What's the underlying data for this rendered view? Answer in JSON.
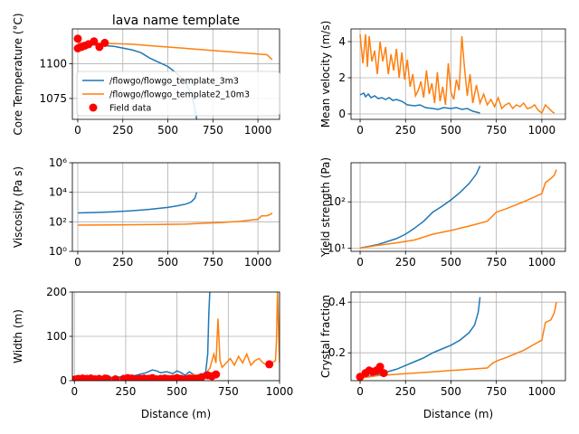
{
  "chart_data": [
    {
      "type": "line",
      "title": "lava name template",
      "xlabel": "",
      "ylabel": "Core Temperature (°C)",
      "xlim": [
        -30,
        1120
      ],
      "ylim": [
        1060,
        1125
      ],
      "xticks": [
        "0",
        "250",
        "500",
        "750",
        "1000"
      ],
      "yticks": [
        "1075",
        "1100"
      ],
      "xtick_values": [
        0,
        250,
        500,
        750,
        1000
      ],
      "ytick_values": [
        1075,
        1100
      ],
      "grid": true,
      "legend": {
        "placement": "lower-left",
        "entries": [
          "/flowgo/flowgo_template_3m3",
          "/flowgo/flowgo_template2_10m3",
          "Field data"
        ]
      },
      "series": [
        {
          "name": "/flowgo/flowgo_template_3m3",
          "color": "#1f77b4",
          "x": [
            0,
            100,
            200,
            300,
            350,
            400,
            450,
            500,
            550,
            600,
            630,
            650,
            660
          ],
          "y": [
            1114,
            1113.5,
            1112.5,
            1110,
            1108,
            1104,
            1101,
            1098,
            1093,
            1086,
            1078,
            1068,
            1060
          ]
        },
        {
          "name": "/flowgo/flowgo_template2_10m3",
          "color": "#ff7f0e",
          "x": [
            0,
            100,
            200,
            300,
            400,
            500,
            600,
            700,
            800,
            900,
            1000,
            1050,
            1070,
            1080
          ],
          "y": [
            1115,
            1114.8,
            1114.5,
            1114,
            1113,
            1112,
            1111,
            1110,
            1109,
            1108,
            1107,
            1106.5,
            1104,
            1103
          ]
        },
        {
          "name": "Field data",
          "color": "#ff0000",
          "markers": true,
          "x": [
            0,
            0,
            20,
            40,
            60,
            90,
            120,
            150
          ],
          "y": [
            1118,
            1111,
            1112,
            1113,
            1114,
            1116,
            1112,
            1115
          ]
        }
      ]
    },
    {
      "type": "line",
      "title": "",
      "xlabel": "",
      "ylabel": "Mean velocity (m/s)",
      "xlim": [
        -50,
        1130
      ],
      "ylim": [
        -0.3,
        4.7
      ],
      "xticks": [
        "0",
        "250",
        "500",
        "750",
        "1000"
      ],
      "yticks": [
        "0",
        "2",
        "4"
      ],
      "xtick_values": [
        0,
        250,
        500,
        750,
        1000
      ],
      "ytick_values": [
        0,
        2,
        4
      ],
      "grid": true,
      "series": [
        {
          "name": "/flowgo/flowgo_template_3m3",
          "color": "#1f77b4",
          "x": [
            0,
            20,
            30,
            45,
            60,
            80,
            100,
            120,
            140,
            160,
            180,
            200,
            230,
            260,
            300,
            330,
            360,
            400,
            430,
            460,
            500,
            530,
            560,
            590,
            620,
            640,
            660
          ],
          "y": [
            1.05,
            1.15,
            0.95,
            1.1,
            0.9,
            1.0,
            0.85,
            0.9,
            0.8,
            0.9,
            0.75,
            0.8,
            0.7,
            0.5,
            0.45,
            0.5,
            0.35,
            0.3,
            0.25,
            0.35,
            0.3,
            0.35,
            0.25,
            0.3,
            0.15,
            0.1,
            0.05
          ]
        },
        {
          "name": "/flowgo/flowgo_template2_10m3",
          "color": "#ff7f0e",
          "x": [
            0,
            15,
            30,
            40,
            50,
            65,
            80,
            95,
            110,
            125,
            140,
            155,
            170,
            185,
            200,
            215,
            230,
            245,
            260,
            275,
            290,
            305,
            320,
            335,
            350,
            365,
            380,
            395,
            410,
            425,
            440,
            455,
            470,
            485,
            500,
            515,
            530,
            545,
            560,
            575,
            590,
            605,
            620,
            640,
            660,
            680,
            700,
            720,
            740,
            760,
            780,
            800,
            820,
            840,
            860,
            880,
            900,
            920,
            940,
            960,
            980,
            1000,
            1020,
            1040,
            1060,
            1070
          ],
          "y": [
            4.4,
            2.8,
            4.4,
            2.6,
            4.3,
            2.9,
            3.5,
            2.2,
            4.0,
            2.9,
            3.7,
            2.2,
            3.3,
            2.4,
            3.6,
            2.0,
            3.4,
            1.9,
            3.0,
            1.5,
            2.2,
            1.0,
            1.3,
            1.8,
            0.9,
            2.4,
            1.1,
            1.7,
            0.6,
            2.3,
            0.7,
            1.5,
            0.5,
            2.8,
            1.2,
            0.8,
            1.9,
            1.3,
            4.3,
            2.5,
            1.0,
            2.2,
            0.6,
            1.6,
            0.6,
            1.1,
            0.5,
            0.8,
            0.4,
            0.9,
            0.3,
            0.5,
            0.6,
            0.3,
            0.5,
            0.4,
            0.6,
            0.3,
            0.35,
            0.5,
            0.2,
            0.05,
            0.5,
            0.3,
            0.1,
            0.05
          ]
        }
      ]
    },
    {
      "type": "line",
      "title": "",
      "xlabel": "",
      "ylabel": "Viscosity (Pa s)",
      "yscale": "log",
      "xlim": [
        -30,
        1120
      ],
      "ylim": [
        1,
        1000000
      ],
      "xticks": [
        "0",
        "250",
        "500",
        "750",
        "1000"
      ],
      "yticks": [
        "10⁰",
        "10²",
        "10⁴",
        "10⁶"
      ],
      "xtick_values": [
        0,
        250,
        500,
        750,
        1000
      ],
      "ytick_values": [
        1,
        100,
        10000,
        1000000
      ],
      "grid": true,
      "series": [
        {
          "name": "/flowgo/flowgo_template_3m3",
          "color": "#1f77b4",
          "x": [
            0,
            100,
            200,
            300,
            400,
            500,
            550,
            600,
            630,
            650,
            660
          ],
          "y": [
            400,
            430,
            480,
            560,
            700,
            950,
            1200,
            1600,
            2200,
            4000,
            10000
          ]
        },
        {
          "name": "/flowgo/flowgo_template2_10m3",
          "color": "#ff7f0e",
          "x": [
            0,
            200,
            400,
            600,
            700,
            800,
            900,
            1000,
            1020,
            1050,
            1070,
            1080
          ],
          "y": [
            60,
            62,
            65,
            70,
            80,
            90,
            110,
            150,
            250,
            260,
            320,
            400
          ]
        }
      ]
    },
    {
      "type": "line",
      "title": "",
      "xlabel": "",
      "ylabel": "Yield strength (Pa)",
      "yscale": "log",
      "xlim": [
        -50,
        1130
      ],
      "ylim": [
        8.5,
        700
      ],
      "xticks": [
        "0",
        "250",
        "500",
        "750",
        "1000"
      ],
      "yticks": [
        "10¹",
        "10²"
      ],
      "xtick_values": [
        0,
        250,
        500,
        750,
        1000
      ],
      "ytick_values": [
        10,
        100
      ],
      "grid": true,
      "series": [
        {
          "name": "/flowgo/flowgo_template_3m3",
          "color": "#1f77b4",
          "x": [
            0,
            100,
            200,
            250,
            300,
            350,
            400,
            450,
            500,
            550,
            600,
            640,
            660
          ],
          "y": [
            10,
            12,
            16,
            20,
            27,
            38,
            60,
            80,
            110,
            160,
            250,
            400,
            600
          ]
        },
        {
          "name": "/flowgo/flowgo_template2_10m3",
          "color": "#ff7f0e",
          "x": [
            0,
            100,
            200,
            300,
            400,
            500,
            600,
            700,
            750,
            800,
            900,
            1000,
            1020,
            1050,
            1070,
            1080
          ],
          "y": [
            10,
            11.5,
            13,
            15,
            20,
            24,
            30,
            38,
            60,
            70,
            100,
            150,
            260,
            320,
            380,
            500
          ]
        }
      ]
    },
    {
      "type": "line",
      "title": "",
      "xlabel": "Distance (m)",
      "ylabel": "Width (m)",
      "xlim": [
        -10,
        1000
      ],
      "ylim": [
        0,
        200
      ],
      "xticks": [
        "0",
        "250",
        "500",
        "750",
        "1000"
      ],
      "yticks": [
        "0",
        "100",
        "200"
      ],
      "xtick_values": [
        0,
        250,
        500,
        750,
        1000
      ],
      "ytick_values": [
        0,
        100,
        200
      ],
      "grid": true,
      "series": [
        {
          "name": "/flowgo/flowgo_template_3m3",
          "color": "#1f77b4",
          "x": [
            0,
            50,
            100,
            150,
            200,
            250,
            300,
            350,
            380,
            400,
            420,
            450,
            480,
            500,
            520,
            540,
            560,
            580,
            600,
            620,
            640,
            650,
            655,
            660
          ],
          "y": [
            5,
            6,
            6,
            7,
            8,
            9,
            12,
            18,
            24,
            22,
            18,
            20,
            16,
            22,
            18,
            12,
            20,
            14,
            10,
            12,
            20,
            60,
            150,
            200
          ]
        },
        {
          "name": "/flowgo/flowgo_template2_10m3",
          "color": "#ff7f0e",
          "x": [
            0,
            50,
            100,
            150,
            200,
            250,
            300,
            350,
            400,
            450,
            500,
            550,
            580,
            600,
            620,
            640,
            660,
            680,
            690,
            700,
            710,
            720,
            740,
            760,
            780,
            800,
            820,
            840,
            860,
            880,
            900,
            920,
            940,
            960,
            980,
            985,
            990,
            1000
          ],
          "y": [
            3,
            4,
            5,
            4,
            5,
            8,
            6,
            10,
            8,
            12,
            9,
            10,
            14,
            8,
            12,
            16,
            28,
            60,
            40,
            140,
            45,
            30,
            40,
            50,
            35,
            55,
            40,
            60,
            35,
            45,
            50,
            40,
            35,
            40,
            45,
            90,
            200,
            40
          ]
        },
        {
          "name": "Field data",
          "color": "#ff0000",
          "markers": true,
          "x": [
            0,
            10,
            20,
            30,
            40,
            60,
            80,
            100,
            120,
            150,
            160,
            200,
            240,
            260,
            280,
            300,
            320,
            340,
            360,
            380,
            400,
            420,
            440,
            460,
            480,
            500,
            520,
            540,
            560,
            580,
            600,
            620,
            650,
            670,
            690,
            950
          ],
          "y": [
            2,
            3,
            4,
            3,
            5,
            4,
            5,
            3,
            4,
            5,
            4,
            3,
            4,
            6,
            5,
            3,
            4,
            5,
            4,
            6,
            3,
            4,
            5,
            3,
            4,
            6,
            4,
            3,
            5,
            4,
            5,
            8,
            12,
            10,
            14,
            37
          ]
        }
      ]
    },
    {
      "type": "line",
      "title": "",
      "xlabel": "Distance (m)",
      "ylabel": "Crystal fraction",
      "xlim": [
        -50,
        1130
      ],
      "ylim": [
        0.09,
        0.44
      ],
      "xticks": [
        "0",
        "250",
        "500",
        "750",
        "1000"
      ],
      "yticks": [
        "0.2",
        "0.4"
      ],
      "xtick_values": [
        0,
        250,
        500,
        750,
        1000
      ],
      "ytick_values": [
        0.2,
        0.4
      ],
      "grid": true,
      "series": [
        {
          "name": "/flowgo/flowgo_template_3m3",
          "color": "#1f77b4",
          "x": [
            0,
            100,
            200,
            250,
            300,
            350,
            400,
            450,
            500,
            550,
            600,
            630,
            650,
            660
          ],
          "y": [
            0.1,
            0.115,
            0.135,
            0.15,
            0.165,
            0.18,
            0.2,
            0.215,
            0.23,
            0.25,
            0.28,
            0.31,
            0.36,
            0.42
          ]
        },
        {
          "name": "/flowgo/flowgo_template2_10m3",
          "color": "#ff7f0e",
          "x": [
            0,
            100,
            200,
            300,
            400,
            500,
            600,
            700,
            730,
            760,
            800,
            900,
            1000,
            1020,
            1050,
            1070,
            1080
          ],
          "y": [
            0.1,
            0.11,
            0.115,
            0.12,
            0.125,
            0.13,
            0.135,
            0.14,
            0.16,
            0.17,
            0.18,
            0.21,
            0.25,
            0.32,
            0.33,
            0.36,
            0.4
          ]
        },
        {
          "name": "Field data",
          "color": "#ff0000",
          "markers": true,
          "x": [
            0,
            30,
            50,
            70,
            90,
            110,
            130
          ],
          "y": [
            0.105,
            0.12,
            0.13,
            0.125,
            0.13,
            0.145,
            0.12
          ]
        }
      ]
    }
  ]
}
